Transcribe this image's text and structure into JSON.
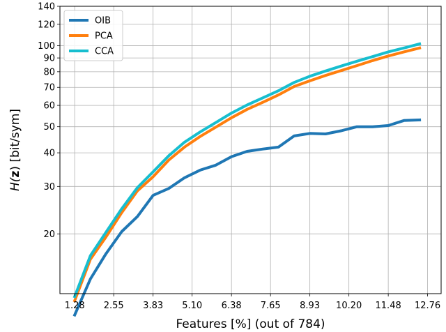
{
  "chart_data": {
    "type": "line",
    "title": "",
    "xlabel": "Features [%] (out of 784)",
    "ylabel_prefix": "H(",
    "ylabel_bold": "z",
    "ylabel_suffix": ") [bit/sym]",
    "yscale": "log",
    "xlim": [
      0.8,
      13.2
    ],
    "ylim": [
      12,
      140
    ],
    "grid": true,
    "legend_position": "top-left",
    "xticks": [
      1.28,
      2.55,
      3.83,
      5.1,
      6.38,
      7.65,
      8.93,
      10.2,
      11.48,
      12.76
    ],
    "xtick_labels": [
      "1.28",
      "2.55",
      "3.83",
      "5.10",
      "6.38",
      "7.65",
      "8.93",
      "10.20",
      "11.48",
      "12.76"
    ],
    "yticks": [
      20,
      30,
      40,
      50,
      60,
      70,
      80,
      90,
      100,
      120,
      140
    ],
    "ytick_labels": [
      "20",
      "30",
      "40",
      "50",
      "60",
      "70",
      "80",
      "90",
      "100",
      "120",
      "140"
    ],
    "x": [
      1.28,
      1.79,
      2.3,
      2.81,
      3.32,
      3.83,
      4.34,
      4.85,
      5.36,
      5.87,
      6.38,
      6.89,
      7.4,
      7.91,
      8.42,
      8.93,
      9.44,
      9.95,
      10.46,
      10.97,
      11.48,
      11.99,
      12.5
    ],
    "series": [
      {
        "name": "OIB",
        "color": "#1f77b4",
        "values": [
          10.0,
          13.6,
          16.9,
          20.4,
          23.2,
          27.8,
          29.5,
          32.3,
          34.5,
          36.0,
          38.7,
          40.5,
          41.3,
          42.0,
          46.2,
          47.2,
          47.0,
          48.3,
          50.0,
          50.0,
          50.5,
          52.7,
          53.0
        ]
      },
      {
        "name": "PCA",
        "color": "#ff7f0e",
        "values": [
          11.3,
          16.1,
          19.5,
          24.0,
          28.9,
          32.6,
          37.6,
          42.0,
          46.0,
          49.8,
          54.0,
          58.0,
          61.6,
          65.6,
          70.5,
          74.0,
          77.5,
          80.8,
          84.3,
          88.0,
          91.5,
          94.8,
          98.0
        ]
      },
      {
        "name": "CCA",
        "color": "#17becf",
        "values": [
          11.7,
          16.6,
          20.3,
          24.8,
          29.7,
          34.0,
          39.0,
          43.8,
          47.8,
          51.8,
          56.2,
          60.2,
          64.0,
          68.0,
          73.0,
          77.0,
          80.5,
          84.0,
          87.5,
          91.0,
          94.8,
          98.0,
          101.5
        ]
      }
    ]
  }
}
